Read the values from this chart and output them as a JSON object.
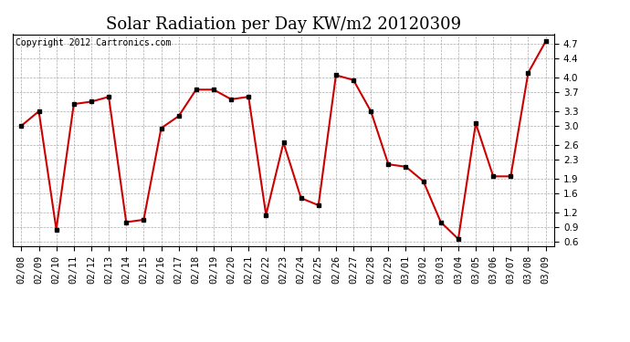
{
  "title": "Solar Radiation per Day KW/m2 20120309",
  "copyright_text": "Copyright 2012 Cartronics.com",
  "x_labels": [
    "02/08",
    "02/09",
    "02/10",
    "02/11",
    "02/12",
    "02/13",
    "02/14",
    "02/15",
    "02/16",
    "02/17",
    "02/18",
    "02/19",
    "02/20",
    "02/21",
    "02/22",
    "02/23",
    "02/24",
    "02/25",
    "02/26",
    "02/27",
    "02/28",
    "02/29",
    "03/01",
    "03/02",
    "03/03",
    "03/04",
    "03/05",
    "03/06",
    "03/07",
    "03/08",
    "03/09"
  ],
  "y_values": [
    3.0,
    3.3,
    0.85,
    3.45,
    3.5,
    3.6,
    1.0,
    1.05,
    2.95,
    3.2,
    3.75,
    3.75,
    3.55,
    3.6,
    1.15,
    2.65,
    1.5,
    1.35,
    4.05,
    3.95,
    3.3,
    2.2,
    2.15,
    1.85,
    1.0,
    0.65,
    3.05,
    1.95,
    1.95,
    4.1,
    4.75
  ],
  "line_color": "#cc0000",
  "marker_color": "#000000",
  "bg_color": "#ffffff",
  "plot_bg_color": "#ffffff",
  "grid_color": "#aaaaaa",
  "ylim": [
    0.5,
    4.9
  ],
  "yticks": [
    0.6,
    0.9,
    1.2,
    1.6,
    1.9,
    2.3,
    2.6,
    3.0,
    3.3,
    3.7,
    4.0,
    4.4,
    4.7
  ],
  "title_fontsize": 13,
  "copyright_fontsize": 7,
  "tick_fontsize": 7.5
}
